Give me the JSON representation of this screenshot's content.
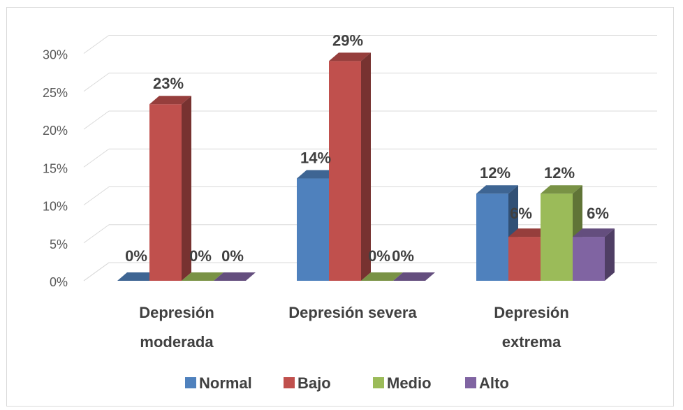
{
  "chart_data": {
    "type": "bar",
    "title": "",
    "xlabel": "",
    "ylabel": "",
    "ylim": [
      0,
      0.3
    ],
    "y_ticks": [
      "0%",
      "5%",
      "10%",
      "15%",
      "20%",
      "25%",
      "30%"
    ],
    "categories": [
      [
        "Depresión",
        "moderada"
      ],
      [
        "Depresión severa"
      ],
      [
        "Depresión",
        "extrema"
      ]
    ],
    "series": [
      {
        "name": "Normal",
        "color": "#4f81bd",
        "values": [
          0,
          0.135,
          0.115
        ],
        "labels": [
          "0%",
          "14%",
          "12%"
        ]
      },
      {
        "name": "Bajo",
        "color": "#c0504d",
        "values": [
          0.233,
          0.29,
          0.058
        ],
        "labels": [
          "23%",
          "29%",
          "6%"
        ]
      },
      {
        "name": "Medio",
        "color": "#9bbb59",
        "values": [
          0,
          0,
          0.115
        ],
        "labels": [
          "0%",
          "0%",
          "12%"
        ]
      },
      {
        "name": "Alto",
        "color": "#8064a2",
        "values": [
          0,
          0,
          0.058
        ],
        "labels": [
          "0%",
          "0%",
          "6%"
        ]
      }
    ],
    "style": "3d-clustered-column",
    "grid": true,
    "legend_position": "bottom"
  }
}
